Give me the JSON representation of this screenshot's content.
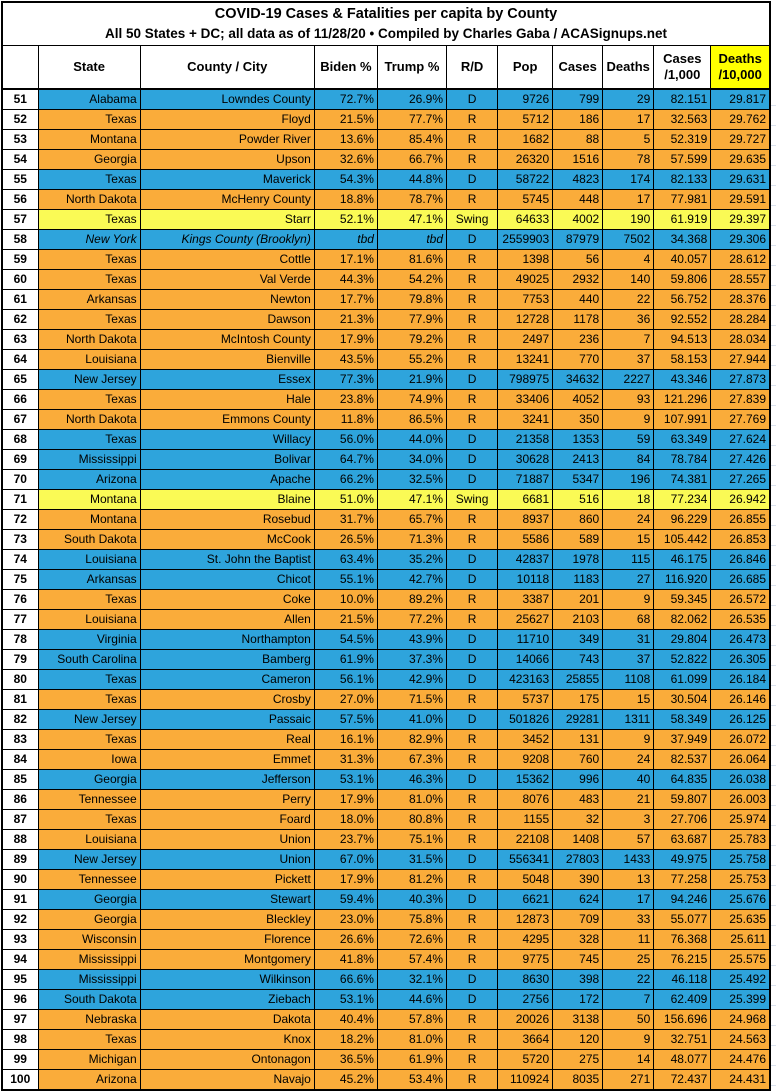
{
  "title": {
    "line1": "COVID-19 Cases & Fatalities per capita by County",
    "line2": "All 50 States + DC; all data as of 11/28/20 • Compiled by Charles Gaba / ACASignups.net"
  },
  "colors": {
    "rep": "#FAAC3A",
    "dem": "#2EA4DC",
    "swing": "#FAFA55",
    "highlight": "#FFFF00",
    "margin_grid": "#D9E1EE"
  },
  "header": {
    "rank": "",
    "state": "State",
    "county": "County / City",
    "biden": "Biden %",
    "trump": "Trump %",
    "rd": "R/D",
    "pop": "Pop",
    "cases": "Cases",
    "deaths": "Deaths",
    "cases_per_1000": "Cases\n/1,000",
    "deaths_per_10000": "Deaths\n/10,000"
  },
  "columns": [
    "rank",
    "state",
    "county",
    "biden",
    "trump",
    "rd",
    "pop",
    "cases",
    "deaths",
    "cases_per_1000",
    "deaths_per_10000"
  ],
  "rows": [
    {
      "rank": "51",
      "state": "Alabama",
      "county": "Lowndes County",
      "biden": "72.7%",
      "trump": "26.9%",
      "rd": "D",
      "pop": "9726",
      "cases": "799",
      "deaths": "29",
      "cases_per_1000": "82.151",
      "deaths_per_10000": "29.817"
    },
    {
      "rank": "52",
      "state": "Texas",
      "county": "Floyd",
      "biden": "21.5%",
      "trump": "77.7%",
      "rd": "R",
      "pop": "5712",
      "cases": "186",
      "deaths": "17",
      "cases_per_1000": "32.563",
      "deaths_per_10000": "29.762"
    },
    {
      "rank": "53",
      "state": "Montana",
      "county": "Powder River",
      "biden": "13.6%",
      "trump": "85.4%",
      "rd": "R",
      "pop": "1682",
      "cases": "88",
      "deaths": "5",
      "cases_per_1000": "52.319",
      "deaths_per_10000": "29.727"
    },
    {
      "rank": "54",
      "state": "Georgia",
      "county": "Upson",
      "biden": "32.6%",
      "trump": "66.7%",
      "rd": "R",
      "pop": "26320",
      "cases": "1516",
      "deaths": "78",
      "cases_per_1000": "57.599",
      "deaths_per_10000": "29.635"
    },
    {
      "rank": "55",
      "state": "Texas",
      "county": "Maverick",
      "biden": "54.3%",
      "trump": "44.8%",
      "rd": "D",
      "pop": "58722",
      "cases": "4823",
      "deaths": "174",
      "cases_per_1000": "82.133",
      "deaths_per_10000": "29.631"
    },
    {
      "rank": "56",
      "state": "North Dakota",
      "county": "McHenry County",
      "biden": "18.8%",
      "trump": "78.7%",
      "rd": "R",
      "pop": "5745",
      "cases": "448",
      "deaths": "17",
      "cases_per_1000": "77.981",
      "deaths_per_10000": "29.591"
    },
    {
      "rank": "57",
      "state": "Texas",
      "county": "Starr",
      "biden": "52.1%",
      "trump": "47.1%",
      "rd": "Swing",
      "pop": "64633",
      "cases": "4002",
      "deaths": "190",
      "cases_per_1000": "61.919",
      "deaths_per_10000": "29.397"
    },
    {
      "rank": "58",
      "state": "New York",
      "county": "Kings County (Brooklyn)",
      "biden": "tbd",
      "trump": "tbd",
      "rd": "D",
      "pop": "2559903",
      "cases": "87979",
      "deaths": "7502",
      "cases_per_1000": "34.368",
      "deaths_per_10000": "29.306",
      "italic": true
    },
    {
      "rank": "59",
      "state": "Texas",
      "county": "Cottle",
      "biden": "17.1%",
      "trump": "81.6%",
      "rd": "R",
      "pop": "1398",
      "cases": "56",
      "deaths": "4",
      "cases_per_1000": "40.057",
      "deaths_per_10000": "28.612"
    },
    {
      "rank": "60",
      "state": "Texas",
      "county": "Val Verde",
      "biden": "44.3%",
      "trump": "54.2%",
      "rd": "R",
      "pop": "49025",
      "cases": "2932",
      "deaths": "140",
      "cases_per_1000": "59.806",
      "deaths_per_10000": "28.557"
    },
    {
      "rank": "61",
      "state": "Arkansas",
      "county": "Newton",
      "biden": "17.7%",
      "trump": "79.8%",
      "rd": "R",
      "pop": "7753",
      "cases": "440",
      "deaths": "22",
      "cases_per_1000": "56.752",
      "deaths_per_10000": "28.376"
    },
    {
      "rank": "62",
      "state": "Texas",
      "county": "Dawson",
      "biden": "21.3%",
      "trump": "77.9%",
      "rd": "R",
      "pop": "12728",
      "cases": "1178",
      "deaths": "36",
      "cases_per_1000": "92.552",
      "deaths_per_10000": "28.284"
    },
    {
      "rank": "63",
      "state": "North Dakota",
      "county": "McIntosh County",
      "biden": "17.9%",
      "trump": "79.2%",
      "rd": "R",
      "pop": "2497",
      "cases": "236",
      "deaths": "7",
      "cases_per_1000": "94.513",
      "deaths_per_10000": "28.034"
    },
    {
      "rank": "64",
      "state": "Louisiana",
      "county": "Bienville",
      "biden": "43.5%",
      "trump": "55.2%",
      "rd": "R",
      "pop": "13241",
      "cases": "770",
      "deaths": "37",
      "cases_per_1000": "58.153",
      "deaths_per_10000": "27.944"
    },
    {
      "rank": "65",
      "state": "New Jersey",
      "county": "Essex",
      "biden": "77.3%",
      "trump": "21.9%",
      "rd": "D",
      "pop": "798975",
      "cases": "34632",
      "deaths": "2227",
      "cases_per_1000": "43.346",
      "deaths_per_10000": "27.873"
    },
    {
      "rank": "66",
      "state": "Texas",
      "county": "Hale",
      "biden": "23.8%",
      "trump": "74.9%",
      "rd": "R",
      "pop": "33406",
      "cases": "4052",
      "deaths": "93",
      "cases_per_1000": "121.296",
      "deaths_per_10000": "27.839"
    },
    {
      "rank": "67",
      "state": "North Dakota",
      "county": "Emmons County",
      "biden": "11.8%",
      "trump": "86.5%",
      "rd": "R",
      "pop": "3241",
      "cases": "350",
      "deaths": "9",
      "cases_per_1000": "107.991",
      "deaths_per_10000": "27.769"
    },
    {
      "rank": "68",
      "state": "Texas",
      "county": "Willacy",
      "biden": "56.0%",
      "trump": "44.0%",
      "rd": "D",
      "pop": "21358",
      "cases": "1353",
      "deaths": "59",
      "cases_per_1000": "63.349",
      "deaths_per_10000": "27.624"
    },
    {
      "rank": "69",
      "state": "Mississippi",
      "county": "Bolivar",
      "biden": "64.7%",
      "trump": "34.0%",
      "rd": "D",
      "pop": "30628",
      "cases": "2413",
      "deaths": "84",
      "cases_per_1000": "78.784",
      "deaths_per_10000": "27.426"
    },
    {
      "rank": "70",
      "state": "Arizona",
      "county": "Apache",
      "biden": "66.2%",
      "trump": "32.5%",
      "rd": "D",
      "pop": "71887",
      "cases": "5347",
      "deaths": "196",
      "cases_per_1000": "74.381",
      "deaths_per_10000": "27.265"
    },
    {
      "rank": "71",
      "state": "Montana",
      "county": "Blaine",
      "biden": "51.0%",
      "trump": "47.1%",
      "rd": "Swing",
      "pop": "6681",
      "cases": "516",
      "deaths": "18",
      "cases_per_1000": "77.234",
      "deaths_per_10000": "26.942"
    },
    {
      "rank": "72",
      "state": "Montana",
      "county": "Rosebud",
      "biden": "31.7%",
      "trump": "65.7%",
      "rd": "R",
      "pop": "8937",
      "cases": "860",
      "deaths": "24",
      "cases_per_1000": "96.229",
      "deaths_per_10000": "26.855"
    },
    {
      "rank": "73",
      "state": "South Dakota",
      "county": "McCook",
      "biden": "26.5%",
      "trump": "71.3%",
      "rd": "R",
      "pop": "5586",
      "cases": "589",
      "deaths": "15",
      "cases_per_1000": "105.442",
      "deaths_per_10000": "26.853"
    },
    {
      "rank": "74",
      "state": "Louisiana",
      "county": "St. John the Baptist",
      "biden": "63.4%",
      "trump": "35.2%",
      "rd": "D",
      "pop": "42837",
      "cases": "1978",
      "deaths": "115",
      "cases_per_1000": "46.175",
      "deaths_per_10000": "26.846"
    },
    {
      "rank": "75",
      "state": "Arkansas",
      "county": "Chicot",
      "biden": "55.1%",
      "trump": "42.7%",
      "rd": "D",
      "pop": "10118",
      "cases": "1183",
      "deaths": "27",
      "cases_per_1000": "116.920",
      "deaths_per_10000": "26.685"
    },
    {
      "rank": "76",
      "state": "Texas",
      "county": "Coke",
      "biden": "10.0%",
      "trump": "89.2%",
      "rd": "R",
      "pop": "3387",
      "cases": "201",
      "deaths": "9",
      "cases_per_1000": "59.345",
      "deaths_per_10000": "26.572"
    },
    {
      "rank": "77",
      "state": "Louisiana",
      "county": "Allen",
      "biden": "21.5%",
      "trump": "77.2%",
      "rd": "R",
      "pop": "25627",
      "cases": "2103",
      "deaths": "68",
      "cases_per_1000": "82.062",
      "deaths_per_10000": "26.535"
    },
    {
      "rank": "78",
      "state": "Virginia",
      "county": "Northampton",
      "biden": "54.5%",
      "trump": "43.9%",
      "rd": "D",
      "pop": "11710",
      "cases": "349",
      "deaths": "31",
      "cases_per_1000": "29.804",
      "deaths_per_10000": "26.473"
    },
    {
      "rank": "79",
      "state": "South Carolina",
      "county": "Bamberg",
      "biden": "61.9%",
      "trump": "37.3%",
      "rd": "D",
      "pop": "14066",
      "cases": "743",
      "deaths": "37",
      "cases_per_1000": "52.822",
      "deaths_per_10000": "26.305"
    },
    {
      "rank": "80",
      "state": "Texas",
      "county": "Cameron",
      "biden": "56.1%",
      "trump": "42.9%",
      "rd": "D",
      "pop": "423163",
      "cases": "25855",
      "deaths": "1108",
      "cases_per_1000": "61.099",
      "deaths_per_10000": "26.184"
    },
    {
      "rank": "81",
      "state": "Texas",
      "county": "Crosby",
      "biden": "27.0%",
      "trump": "71.5%",
      "rd": "R",
      "pop": "5737",
      "cases": "175",
      "deaths": "15",
      "cases_per_1000": "30.504",
      "deaths_per_10000": "26.146"
    },
    {
      "rank": "82",
      "state": "New Jersey",
      "county": "Passaic",
      "biden": "57.5%",
      "trump": "41.0%",
      "rd": "D",
      "pop": "501826",
      "cases": "29281",
      "deaths": "1311",
      "cases_per_1000": "58.349",
      "deaths_per_10000": "26.125"
    },
    {
      "rank": "83",
      "state": "Texas",
      "county": "Real",
      "biden": "16.1%",
      "trump": "82.9%",
      "rd": "R",
      "pop": "3452",
      "cases": "131",
      "deaths": "9",
      "cases_per_1000": "37.949",
      "deaths_per_10000": "26.072"
    },
    {
      "rank": "84",
      "state": "Iowa",
      "county": "Emmet",
      "biden": "31.3%",
      "trump": "67.3%",
      "rd": "R",
      "pop": "9208",
      "cases": "760",
      "deaths": "24",
      "cases_per_1000": "82.537",
      "deaths_per_10000": "26.064"
    },
    {
      "rank": "85",
      "state": "Georgia",
      "county": "Jefferson",
      "biden": "53.1%",
      "trump": "46.3%",
      "rd": "D",
      "pop": "15362",
      "cases": "996",
      "deaths": "40",
      "cases_per_1000": "64.835",
      "deaths_per_10000": "26.038"
    },
    {
      "rank": "86",
      "state": "Tennessee",
      "county": "Perry",
      "biden": "17.9%",
      "trump": "81.0%",
      "rd": "R",
      "pop": "8076",
      "cases": "483",
      "deaths": "21",
      "cases_per_1000": "59.807",
      "deaths_per_10000": "26.003"
    },
    {
      "rank": "87",
      "state": "Texas",
      "county": "Foard",
      "biden": "18.0%",
      "trump": "80.8%",
      "rd": "R",
      "pop": "1155",
      "cases": "32",
      "deaths": "3",
      "cases_per_1000": "27.706",
      "deaths_per_10000": "25.974"
    },
    {
      "rank": "88",
      "state": "Louisiana",
      "county": "Union",
      "biden": "23.7%",
      "trump": "75.1%",
      "rd": "R",
      "pop": "22108",
      "cases": "1408",
      "deaths": "57",
      "cases_per_1000": "63.687",
      "deaths_per_10000": "25.783"
    },
    {
      "rank": "89",
      "state": "New Jersey",
      "county": "Union",
      "biden": "67.0%",
      "trump": "31.5%",
      "rd": "D",
      "pop": "556341",
      "cases": "27803",
      "deaths": "1433",
      "cases_per_1000": "49.975",
      "deaths_per_10000": "25.758"
    },
    {
      "rank": "90",
      "state": "Tennessee",
      "county": "Pickett",
      "biden": "17.9%",
      "trump": "81.2%",
      "rd": "R",
      "pop": "5048",
      "cases": "390",
      "deaths": "13",
      "cases_per_1000": "77.258",
      "deaths_per_10000": "25.753"
    },
    {
      "rank": "91",
      "state": "Georgia",
      "county": "Stewart",
      "biden": "59.4%",
      "trump": "40.3%",
      "rd": "D",
      "pop": "6621",
      "cases": "624",
      "deaths": "17",
      "cases_per_1000": "94.246",
      "deaths_per_10000": "25.676"
    },
    {
      "rank": "92",
      "state": "Georgia",
      "county": "Bleckley",
      "biden": "23.0%",
      "trump": "75.8%",
      "rd": "R",
      "pop": "12873",
      "cases": "709",
      "deaths": "33",
      "cases_per_1000": "55.077",
      "deaths_per_10000": "25.635"
    },
    {
      "rank": "93",
      "state": "Wisconsin",
      "county": "Florence",
      "biden": "26.6%",
      "trump": "72.6%",
      "rd": "R",
      "pop": "4295",
      "cases": "328",
      "deaths": "11",
      "cases_per_1000": "76.368",
      "deaths_per_10000": "25.611"
    },
    {
      "rank": "94",
      "state": "Mississippi",
      "county": "Montgomery",
      "biden": "41.8%",
      "trump": "57.4%",
      "rd": "R",
      "pop": "9775",
      "cases": "745",
      "deaths": "25",
      "cases_per_1000": "76.215",
      "deaths_per_10000": "25.575"
    },
    {
      "rank": "95",
      "state": "Mississippi",
      "county": "Wilkinson",
      "biden": "66.6%",
      "trump": "32.1%",
      "rd": "D",
      "pop": "8630",
      "cases": "398",
      "deaths": "22",
      "cases_per_1000": "46.118",
      "deaths_per_10000": "25.492"
    },
    {
      "rank": "96",
      "state": "South Dakota",
      "county": "Ziebach",
      "biden": "53.1%",
      "trump": "44.6%",
      "rd": "D",
      "pop": "2756",
      "cases": "172",
      "deaths": "7",
      "cases_per_1000": "62.409",
      "deaths_per_10000": "25.399"
    },
    {
      "rank": "97",
      "state": "Nebraska",
      "county": "Dakota",
      "biden": "40.4%",
      "trump": "57.8%",
      "rd": "R",
      "pop": "20026",
      "cases": "3138",
      "deaths": "50",
      "cases_per_1000": "156.696",
      "deaths_per_10000": "24.968"
    },
    {
      "rank": "98",
      "state": "Texas",
      "county": "Knox",
      "biden": "18.2%",
      "trump": "81.0%",
      "rd": "R",
      "pop": "3664",
      "cases": "120",
      "deaths": "9",
      "cases_per_1000": "32.751",
      "deaths_per_10000": "24.563"
    },
    {
      "rank": "99",
      "state": "Michigan",
      "county": "Ontonagon",
      "biden": "36.5%",
      "trump": "61.9%",
      "rd": "R",
      "pop": "5720",
      "cases": "275",
      "deaths": "14",
      "cases_per_1000": "48.077",
      "deaths_per_10000": "24.476"
    },
    {
      "rank": "100",
      "state": "Arizona",
      "county": "Navajo",
      "biden": "45.2%",
      "trump": "53.4%",
      "rd": "R",
      "pop": "110924",
      "cases": "8035",
      "deaths": "271",
      "cases_per_1000": "72.437",
      "deaths_per_10000": "24.431"
    }
  ]
}
